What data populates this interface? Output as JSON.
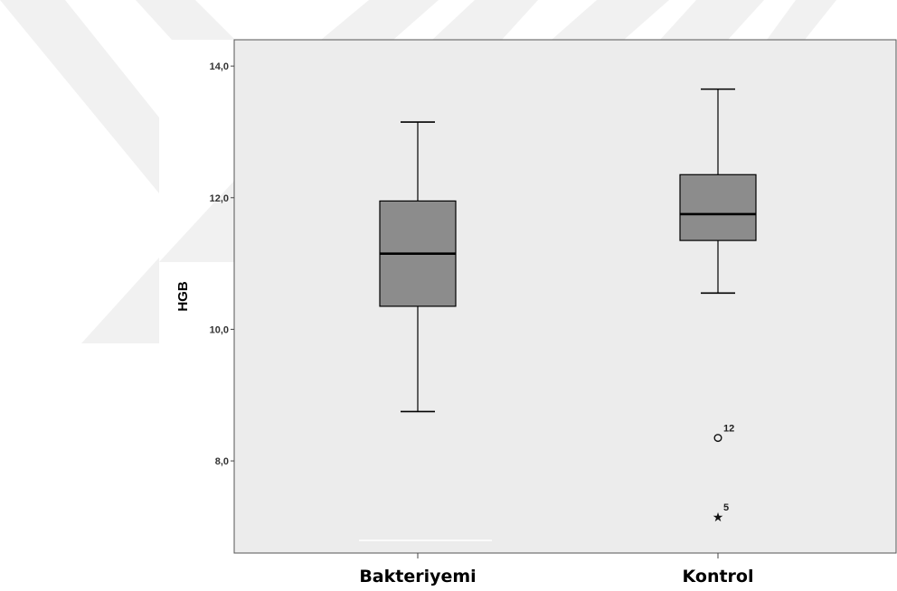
{
  "chart_data": {
    "type": "boxplot",
    "ylabel": "HGB",
    "ylim": [
      6.6,
      14.4
    ],
    "y_ticks": [
      "8,0",
      "10,0",
      "12,0",
      "14,0"
    ],
    "y_tick_values": [
      8,
      10,
      12,
      14
    ],
    "categories": [
      "Bakteriyemi",
      "Kontrol"
    ],
    "series": [
      {
        "category": "Bakteriyemi",
        "whisker_low": 8.75,
        "q1": 10.35,
        "median": 11.15,
        "q3": 11.95,
        "whisker_high": 13.15,
        "outliers": []
      },
      {
        "category": "Kontrol",
        "whisker_low": 10.55,
        "q1": 11.35,
        "median": 11.75,
        "q3": 12.35,
        "whisker_high": 13.65,
        "outliers": [
          {
            "value": 8.35,
            "label": "12",
            "marker": "circle"
          },
          {
            "value": 7.15,
            "label": "5",
            "marker": "star"
          }
        ]
      }
    ],
    "colors": {
      "plot_background": "#ececec",
      "box_fill": "#8c8c8c",
      "line": "#000000",
      "watermark": "#f1f1f1"
    }
  }
}
